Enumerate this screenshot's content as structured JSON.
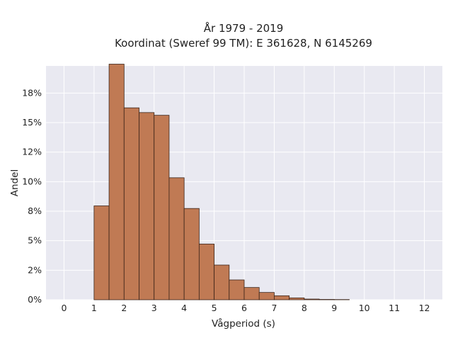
{
  "chart_data": {
    "type": "bar",
    "title_line1": "År 1979 - 2019",
    "title_line2": "Koordinat (Sweref 99 TM): E 361628, N 6145269",
    "xlabel": "Vågperiod (s)",
    "ylabel": "Andel",
    "xlim": [
      -0.6,
      12.6
    ],
    "ylim": [
      0,
      0.198
    ],
    "x_ticks": [
      0,
      1,
      2,
      3,
      4,
      5,
      6,
      7,
      8,
      9,
      10,
      11,
      12
    ],
    "y_ticks": [
      {
        "value": 0.0,
        "label": "0%"
      },
      {
        "value": 0.025,
        "label": "2%"
      },
      {
        "value": 0.05,
        "label": "5%"
      },
      {
        "value": 0.075,
        "label": "8%"
      },
      {
        "value": 0.1,
        "label": "10%"
      },
      {
        "value": 0.125,
        "label": "12%"
      },
      {
        "value": 0.15,
        "label": "15%"
      },
      {
        "value": 0.175,
        "label": "18%"
      }
    ],
    "bin_width": 0.5,
    "bins": [
      {
        "start": 1.0,
        "value": 0.0795
      },
      {
        "start": 1.5,
        "value": 0.1995
      },
      {
        "start": 2.0,
        "value": 0.1625
      },
      {
        "start": 2.5,
        "value": 0.1585
      },
      {
        "start": 3.0,
        "value": 0.1562
      },
      {
        "start": 3.5,
        "value": 0.1033
      },
      {
        "start": 4.0,
        "value": 0.0773
      },
      {
        "start": 4.5,
        "value": 0.0472
      },
      {
        "start": 5.0,
        "value": 0.0294
      },
      {
        "start": 5.5,
        "value": 0.0168
      },
      {
        "start": 6.0,
        "value": 0.0104
      },
      {
        "start": 6.5,
        "value": 0.0062
      },
      {
        "start": 7.0,
        "value": 0.0034
      },
      {
        "start": 7.5,
        "value": 0.0016
      },
      {
        "start": 8.0,
        "value": 0.0006
      },
      {
        "start": 8.5,
        "value": 0.0003
      },
      {
        "start": 9.0,
        "value": 0.0002
      }
    ],
    "grid": true,
    "colors": {
      "bar_fill": "#c07a54",
      "bar_stroke": "#3b2418",
      "plot_bg": "#e9e9f1",
      "grid": "#ffffff"
    }
  }
}
